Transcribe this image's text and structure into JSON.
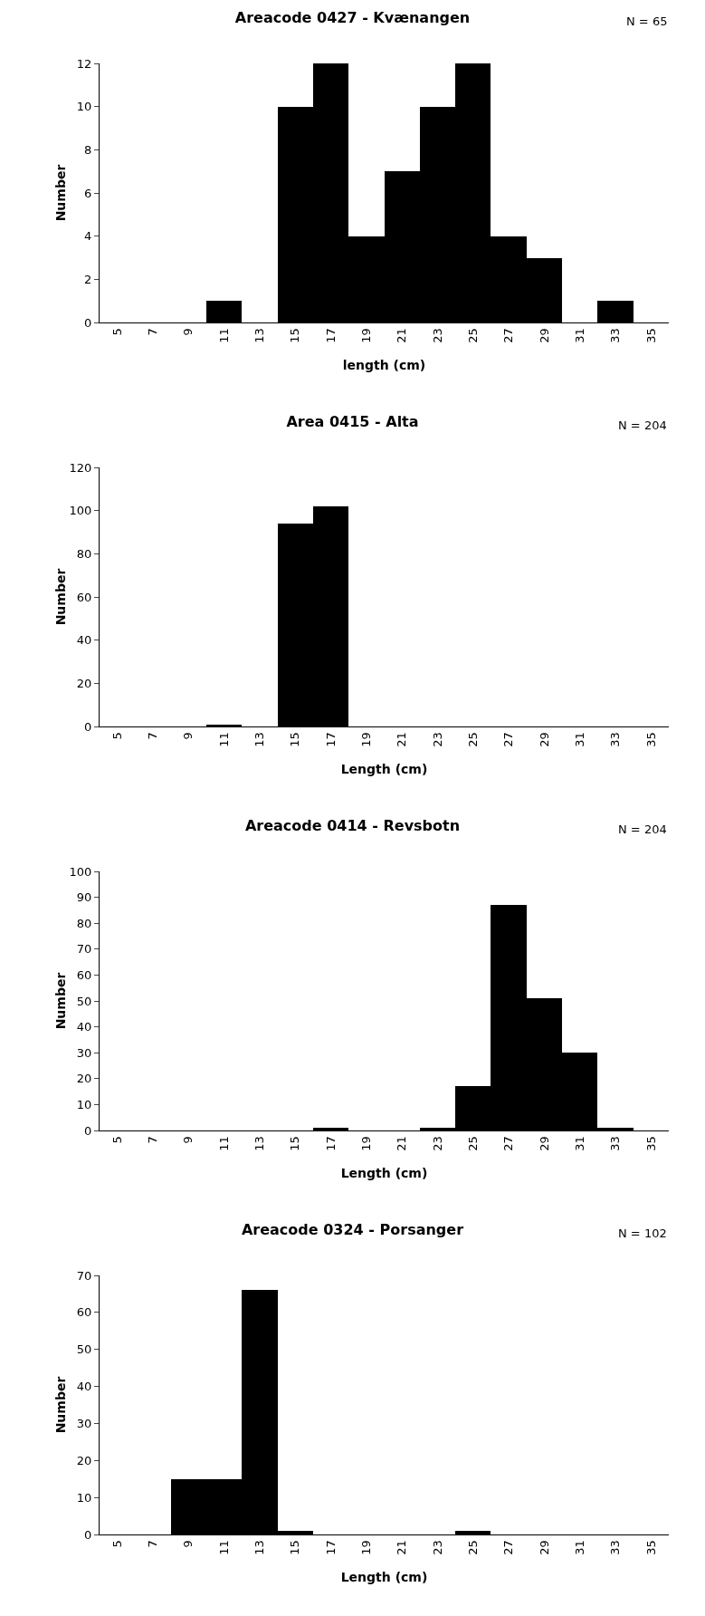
{
  "chart_data": [
    {
      "type": "histogram",
      "title": "Areacode 0427 - Kvænangen",
      "annotations": [
        "N = 65"
      ],
      "xlabel": "length (cm)",
      "ylabel": "Number",
      "color": "#000000",
      "bins": [
        4,
        6,
        8,
        10,
        12,
        14,
        16,
        18,
        20,
        22,
        24,
        26,
        28,
        30,
        32,
        34,
        36
      ],
      "values": [
        0,
        0,
        0,
        1,
        0,
        10,
        12,
        4,
        7,
        10,
        12,
        4,
        3,
        0,
        1,
        0
      ],
      "xlim": [
        4,
        36
      ],
      "xticks": [
        5,
        7,
        9,
        11,
        13,
        15,
        17,
        19,
        21,
        23,
        25,
        27,
        29,
        31,
        33,
        35
      ],
      "ylim": [
        0,
        12
      ],
      "yticks": [
        0,
        2,
        4,
        6,
        8,
        10,
        12
      ],
      "grid": false
    },
    {
      "type": "histogram",
      "title": "Area 0415 - Alta",
      "annotations": [
        "N = 204"
      ],
      "xlabel": "Length (cm)",
      "ylabel": "Number",
      "color": "#000000",
      "bins": [
        4,
        6,
        8,
        10,
        12,
        14,
        16,
        18,
        20,
        22,
        24,
        26,
        28,
        30,
        32,
        34,
        36
      ],
      "values": [
        0,
        0,
        0,
        1,
        0,
        94,
        102,
        0,
        0,
        0,
        0,
        0,
        0,
        0,
        0,
        0
      ],
      "xlim": [
        4,
        36
      ],
      "xticks": [
        5,
        7,
        9,
        11,
        13,
        15,
        17,
        19,
        21,
        23,
        25,
        27,
        29,
        31,
        33,
        35
      ],
      "ylim": [
        0,
        120
      ],
      "yticks": [
        0,
        20,
        40,
        60,
        80,
        100,
        120
      ],
      "grid": false
    },
    {
      "type": "histogram",
      "title": "Areacode 0414 - Revsbotn",
      "annotations": [
        "N = 204"
      ],
      "xlabel": "Length (cm)",
      "ylabel": "Number",
      "color": "#000000",
      "bins": [
        4,
        6,
        8,
        10,
        12,
        14,
        16,
        18,
        20,
        22,
        24,
        26,
        28,
        30,
        32,
        34,
        36
      ],
      "values": [
        0,
        0,
        0,
        0,
        0,
        0,
        1,
        0,
        0,
        1,
        17,
        87,
        51,
        30,
        1,
        0
      ],
      "xlim": [
        4,
        36
      ],
      "xticks": [
        5,
        7,
        9,
        11,
        13,
        15,
        17,
        19,
        21,
        23,
        25,
        27,
        29,
        31,
        33,
        35
      ],
      "ylim": [
        0,
        100
      ],
      "yticks": [
        0,
        10,
        20,
        30,
        40,
        50,
        60,
        70,
        80,
        90,
        100
      ],
      "grid": false
    },
    {
      "type": "histogram",
      "title": "Areacode 0324 - Porsanger",
      "annotations": [
        "N = 102"
      ],
      "xlabel": "Length (cm)",
      "ylabel": "Number",
      "color": "#000000",
      "bins": [
        4,
        6,
        8,
        10,
        12,
        14,
        16,
        18,
        20,
        22,
        24,
        26,
        28,
        30,
        32,
        34,
        36
      ],
      "values": [
        0,
        0,
        15,
        15,
        66,
        1,
        0,
        0,
        0,
        0,
        1,
        0,
        0,
        0,
        0,
        0
      ],
      "xlim": [
        4,
        36
      ],
      "xticks": [
        5,
        7,
        9,
        11,
        13,
        15,
        17,
        19,
        21,
        23,
        25,
        27,
        29,
        31,
        33,
        35
      ],
      "ylim": [
        0,
        70
      ],
      "yticks": [
        0,
        10,
        20,
        30,
        40,
        50,
        60,
        70
      ],
      "grid": false
    }
  ]
}
